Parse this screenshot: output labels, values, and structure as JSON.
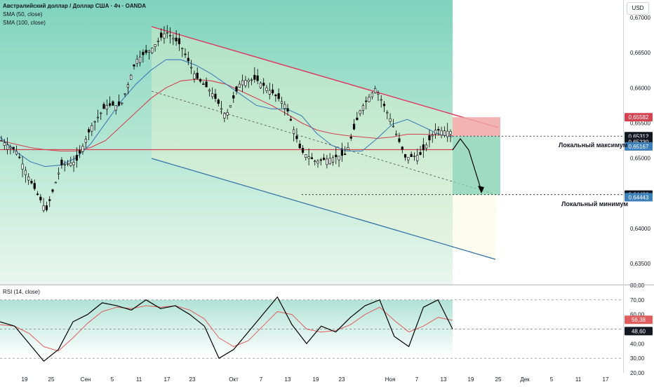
{
  "header": {
    "title": "Австралийский доллар / Доллар США · 4ч · OANDA",
    "line1": "SMA (50, close)",
    "line2": "SMA (100, close)",
    "currency": "USD"
  },
  "rsi_title": "RSI (14, close)",
  "annotations": {
    "local_max": "Локальный максимум",
    "local_min": "Локальный минимум"
  },
  "colors": {
    "channel_top": "#e0325f",
    "channel_bottom": "#2f6fa8",
    "price": "#000000",
    "sma50": "#3d7fb8",
    "sma100": "#d2434f",
    "support": "#d2434f",
    "rsi": "#000000",
    "rsi_ma": "#e05d5d",
    "stop_zone": "#f0a6a6",
    "target_zone": "#7fd0b3"
  },
  "chart_data": [
    {
      "type": "line",
      "title": "Австралийский доллар / Доллар США · 4ч · OANDA",
      "x_ticks": [
        "19",
        "25",
        "Сен",
        "5",
        "11",
        "17",
        "23",
        "Окт",
        "7",
        "13",
        "19",
        "23",
        "Ноя",
        "7",
        "13",
        "19",
        "25",
        "Дек",
        "5",
        "11",
        "17"
      ],
      "y_ticks": [
        "0,67000",
        "0,66500",
        "0,66000",
        "0,65500",
        "0,65000",
        "0,64500",
        "0,64000",
        "0,63500"
      ],
      "ylim": [
        0.632,
        0.6725
      ],
      "price_labels": [
        {
          "value": 0.65582,
          "text": "0,65582",
          "color": "#d2434f"
        },
        {
          "value": 0.65312,
          "text": "0,65312",
          "color": "#131722"
        },
        {
          "value": 0.6522,
          "text": "54:10",
          "color": "#131722"
        },
        {
          "value": 0.6523,
          "text": "0,65230",
          "color": "#131722"
        },
        {
          "value": 0.65167,
          "text": "0,65167",
          "color": "#3d7fb8"
        },
        {
          "value": 0.6448,
          "text": "0,64480",
          "color": "#131722"
        },
        {
          "value": 0.64443,
          "text": "0,64443",
          "color": "#3d7fb8"
        }
      ],
      "series": [
        {
          "name": "SMA (50, close)",
          "values": [
            0.653,
            0.651,
            0.6495,
            0.6488,
            0.649,
            0.65,
            0.652,
            0.655,
            0.658,
            0.6605,
            0.6625,
            0.664,
            0.664,
            0.6632,
            0.662,
            0.6605,
            0.659,
            0.6575,
            0.657,
            0.657,
            0.656,
            0.6535,
            0.6518,
            0.651,
            0.651,
            0.6528,
            0.6548,
            0.6555,
            0.6545,
            0.6535,
            0.653
          ]
        },
        {
          "name": "SMA (100, close)",
          "values": [
            0.6525,
            0.652,
            0.6515,
            0.6512,
            0.651,
            0.651,
            0.6515,
            0.6525,
            0.6545,
            0.6565,
            0.6585,
            0.66,
            0.661,
            0.6612,
            0.661,
            0.6605,
            0.6595,
            0.6585,
            0.6575,
            0.6563,
            0.655,
            0.654,
            0.6535,
            0.6532,
            0.653,
            0.6528,
            0.653,
            0.6534,
            0.6534,
            0.6533,
            0.6532
          ]
        },
        {
          "name": "price",
          "values": [
            0.6525,
            0.651,
            0.6465,
            0.6425,
            0.649,
            0.6495,
            0.6545,
            0.6575,
            0.6575,
            0.664,
            0.6655,
            0.668,
            0.666,
            0.6615,
            0.6595,
            0.656,
            0.661,
            0.6612,
            0.6595,
            0.6575,
            0.651,
            0.6495,
            0.65,
            0.6505,
            0.657,
            0.66,
            0.6555,
            0.65,
            0.6505,
            0.654,
            0.6538
          ]
        }
      ]
    },
    {
      "type": "line",
      "title": "RSI (14, close)",
      "y_ticks": [
        "80,00",
        "70,00",
        "60,00",
        "50,00",
        "40,00",
        "30,00",
        "20,00"
      ],
      "ylim": [
        20,
        80
      ],
      "bands": [
        70,
        50,
        30
      ],
      "value_labels": [
        {
          "value": 56.38,
          "text": "56,38",
          "color": "#e05d5d"
        },
        {
          "value": 48.6,
          "text": "48,60",
          "color": "#131722"
        }
      ],
      "series": [
        {
          "name": "RSI",
          "values": [
            55,
            52,
            40,
            28,
            36,
            55,
            60,
            68,
            66,
            63,
            70,
            64,
            66,
            60,
            52,
            30,
            36,
            48,
            60,
            72,
            53,
            40,
            52,
            48,
            58,
            66,
            70,
            45,
            38,
            65,
            70,
            50
          ]
        },
        {
          "name": "RSI MA",
          "values": [
            53,
            52,
            47,
            38,
            35,
            44,
            54,
            62,
            65,
            64,
            66,
            65,
            66,
            63,
            57,
            44,
            38,
            42,
            52,
            62,
            60,
            50,
            48,
            49,
            53,
            60,
            65,
            56,
            48,
            52,
            58,
            56
          ]
        }
      ]
    }
  ]
}
